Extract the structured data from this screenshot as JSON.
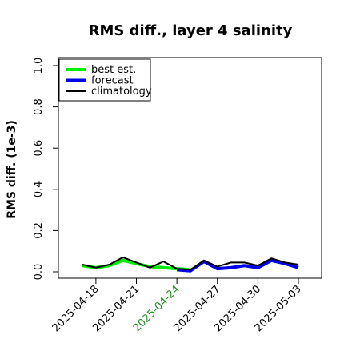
{
  "chart_data": {
    "type": "line",
    "title": "RMS diff., layer 4 salinity",
    "y_label": "RMS diff. (1e-3)",
    "x": [
      "2025-04-17",
      "2025-04-18",
      "2025-04-19",
      "2025-04-20",
      "2025-04-21",
      "2025-04-22",
      "2025-04-23",
      "2025-04-24",
      "2025-04-25",
      "2025-04-26",
      "2025-04-27",
      "2025-04-28",
      "2025-04-29",
      "2025-04-30",
      "2025-05-01",
      "2025-05-02",
      "2025-05-03"
    ],
    "xticks": [
      "2025-04-18",
      "2025-04-21",
      "2025-04-24",
      "2025-04-27",
      "2025-04-30",
      "2025-05-03"
    ],
    "xtick_colors": [
      "#000000",
      "#000000",
      "#228b22",
      "#000000",
      "#000000",
      "#000000"
    ],
    "ylim": [
      0,
      1
    ],
    "yticks": [
      {
        "value": 0,
        "label": "0.0"
      },
      {
        "value": 0.2,
        "label": "0.2"
      },
      {
        "value": 0.4,
        "label": "0.4"
      },
      {
        "value": 0.6,
        "label": "0.6"
      },
      {
        "value": 0.8,
        "label": "0.8"
      },
      {
        "value": 1,
        "label": "1.0"
      }
    ],
    "legend": "upper left",
    "series": [
      {
        "name": "best est.",
        "color": "#00ee00",
        "width": 4,
        "values": [
          0.03,
          0.02,
          0.03,
          0.055,
          0.04,
          0.025,
          0.02,
          0.015,
          0.01,
          null,
          null,
          null,
          null,
          null,
          null,
          null,
          null
        ]
      },
      {
        "name": "forecast",
        "color": "#0000ee",
        "width": 4,
        "values": [
          null,
          null,
          null,
          null,
          null,
          null,
          null,
          0.01,
          0.005,
          0.05,
          0.015,
          0.02,
          0.03,
          0.02,
          0.055,
          0.04,
          0.02
        ]
      },
      {
        "name": "climatology",
        "color": "#000000",
        "width": 2,
        "values": [
          0.035,
          0.02,
          0.035,
          0.07,
          0.045,
          0.02,
          0.05,
          0.015,
          0.01,
          0.055,
          0.025,
          0.045,
          0.045,
          0.03,
          0.065,
          0.045,
          0.035
        ]
      }
    ]
  }
}
